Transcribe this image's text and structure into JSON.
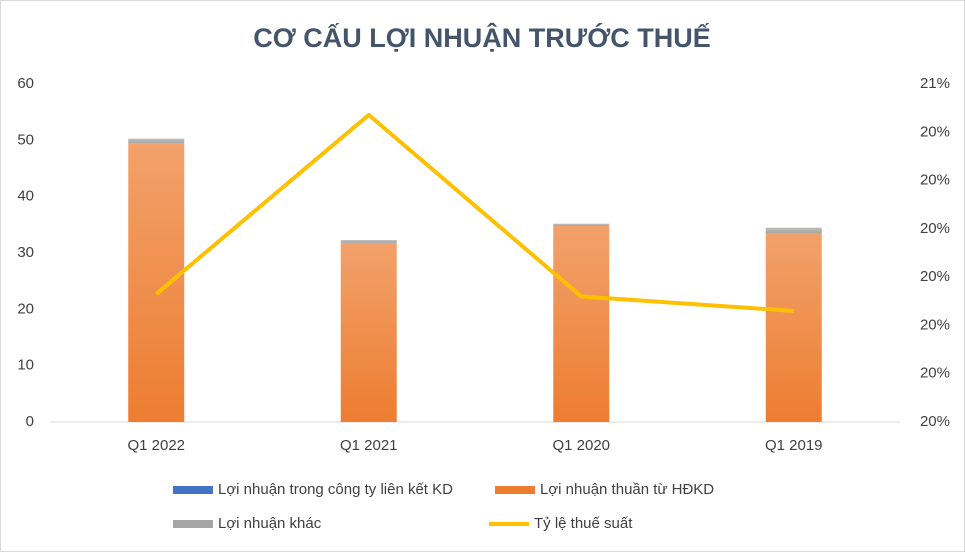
{
  "chart_data": {
    "type": "bar_line",
    "title": "CƠ CẤU LỢI NHUẬN TRƯỚC THUẾ",
    "categories": [
      "Q1 2022",
      "Q1 2021",
      "Q1 2020",
      "Q1 2019"
    ],
    "series": [
      {
        "name": "Lợi nhuận trong công ty liên kết KD",
        "color": "#4472c4",
        "type": "bar",
        "values": [
          0,
          0,
          0,
          0
        ]
      },
      {
        "name": "Lợi nhuận thuần từ HĐKD",
        "color": "#ed7d31",
        "type": "bar",
        "values": [
          49.5,
          31.8,
          34.8,
          33.4
        ]
      },
      {
        "name": "Lợi nhuận khác",
        "color": "#a5a5a5",
        "type": "bar",
        "values": [
          0.8,
          0.5,
          0.4,
          1.1
        ]
      },
      {
        "name": "Tỷ lệ thuế suất",
        "color": "#ffc000",
        "type": "line",
        "axis": "y2",
        "values": [
          20.065,
          20.436,
          20.06,
          20.03
        ]
      }
    ],
    "stacked": true,
    "ylim": [
      0,
      60
    ],
    "yticks": [
      0,
      10,
      20,
      30,
      40,
      50,
      60
    ],
    "y2lim": [
      19.8,
      20.5
    ],
    "y2ticks": [
      {
        "value": 19.8,
        "label": "20%"
      },
      {
        "value": 19.9,
        "label": "20%"
      },
      {
        "value": 20.0,
        "label": "20%"
      },
      {
        "value": 20.1,
        "label": "20%"
      },
      {
        "value": 20.2,
        "label": "20%"
      },
      {
        "value": 20.3,
        "label": "20%"
      },
      {
        "value": 20.4,
        "label": "20%"
      },
      {
        "value": 20.5,
        "label": "21%"
      }
    ],
    "grid": false,
    "legend": "bottom"
  }
}
